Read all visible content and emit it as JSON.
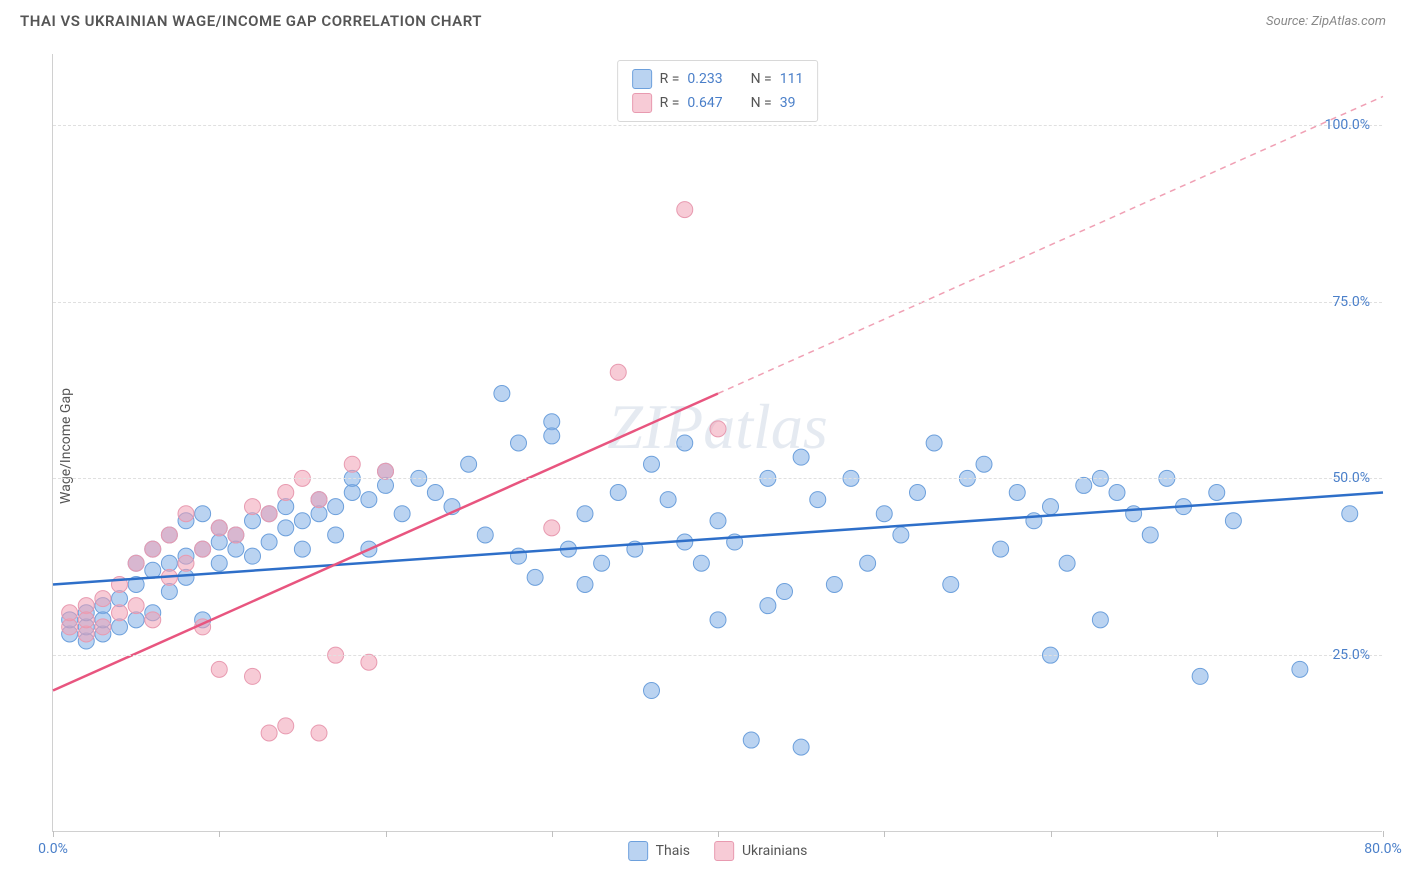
{
  "header": {
    "title": "THAI VS UKRAINIAN WAGE/INCOME GAP CORRELATION CHART",
    "source": "Source: ZipAtlas.com"
  },
  "watermark": "ZIPatlas",
  "chart": {
    "type": "scatter",
    "ylabel": "Wage/Income Gap",
    "xlim": [
      0,
      80
    ],
    "ylim": [
      0,
      110
    ],
    "xtick_positions": [
      0,
      10,
      20,
      30,
      40,
      50,
      60,
      70,
      80
    ],
    "xtick_labels": {
      "0": "0.0%",
      "80": "80.0%"
    },
    "ytick_positions": [
      25,
      50,
      75,
      100
    ],
    "ytick_labels": {
      "25": "25.0%",
      "50": "50.0%",
      "75": "75.0%",
      "100": "100.0%"
    },
    "grid_color": "#e0e0e0",
    "background_color": "#ffffff",
    "axis_color": "#d0d0d0",
    "series": [
      {
        "name": "Thais",
        "color_fill": "rgba(129,175,229,0.55)",
        "color_stroke": "#6da0dc",
        "marker_radius": 8,
        "points": [
          [
            1,
            28
          ],
          [
            1,
            30
          ],
          [
            2,
            27
          ],
          [
            2,
            29
          ],
          [
            2,
            31
          ],
          [
            3,
            28
          ],
          [
            3,
            32
          ],
          [
            3,
            30
          ],
          [
            4,
            33
          ],
          [
            4,
            29
          ],
          [
            5,
            35
          ],
          [
            5,
            38
          ],
          [
            5,
            30
          ],
          [
            6,
            37
          ],
          [
            6,
            40
          ],
          [
            6,
            31
          ],
          [
            7,
            38
          ],
          [
            7,
            42
          ],
          [
            7,
            34
          ],
          [
            8,
            39
          ],
          [
            8,
            44
          ],
          [
            8,
            36
          ],
          [
            9,
            40
          ],
          [
            9,
            45
          ],
          [
            9,
            30
          ],
          [
            10,
            41
          ],
          [
            10,
            43
          ],
          [
            10,
            38
          ],
          [
            11,
            42
          ],
          [
            11,
            40
          ],
          [
            12,
            44
          ],
          [
            12,
            39
          ],
          [
            13,
            45
          ],
          [
            13,
            41
          ],
          [
            14,
            46
          ],
          [
            14,
            43
          ],
          [
            15,
            40
          ],
          [
            15,
            44
          ],
          [
            16,
            45
          ],
          [
            16,
            47
          ],
          [
            17,
            46
          ],
          [
            17,
            42
          ],
          [
            18,
            48
          ],
          [
            18,
            50
          ],
          [
            19,
            47
          ],
          [
            19,
            40
          ],
          [
            20,
            49
          ],
          [
            20,
            51
          ],
          [
            21,
            45
          ],
          [
            22,
            50
          ],
          [
            23,
            48
          ],
          [
            24,
            46
          ],
          [
            25,
            52
          ],
          [
            26,
            42
          ],
          [
            27,
            62
          ],
          [
            28,
            55
          ],
          [
            28,
            39
          ],
          [
            29,
            36
          ],
          [
            30,
            58
          ],
          [
            30,
            56
          ],
          [
            31,
            40
          ],
          [
            32,
            45
          ],
          [
            32,
            35
          ],
          [
            33,
            38
          ],
          [
            34,
            48
          ],
          [
            35,
            40
          ],
          [
            36,
            52
          ],
          [
            36,
            20
          ],
          [
            37,
            47
          ],
          [
            38,
            41
          ],
          [
            38,
            55
          ],
          [
            39,
            38
          ],
          [
            40,
            30
          ],
          [
            40,
            44
          ],
          [
            41,
            41
          ],
          [
            42,
            13
          ],
          [
            43,
            50
          ],
          [
            43,
            32
          ],
          [
            44,
            34
          ],
          [
            45,
            53
          ],
          [
            45,
            12
          ],
          [
            46,
            47
          ],
          [
            47,
            35
          ],
          [
            48,
            50
          ],
          [
            49,
            38
          ],
          [
            50,
            45
          ],
          [
            51,
            42
          ],
          [
            52,
            48
          ],
          [
            53,
            55
          ],
          [
            54,
            35
          ],
          [
            55,
            50
          ],
          [
            56,
            52
          ],
          [
            57,
            40
          ],
          [
            58,
            48
          ],
          [
            59,
            44
          ],
          [
            60,
            46
          ],
          [
            60,
            25
          ],
          [
            61,
            38
          ],
          [
            62,
            49
          ],
          [
            63,
            50
          ],
          [
            63,
            30
          ],
          [
            64,
            48
          ],
          [
            65,
            45
          ],
          [
            66,
            42
          ],
          [
            67,
            50
          ],
          [
            68,
            46
          ],
          [
            69,
            22
          ],
          [
            70,
            48
          ],
          [
            71,
            44
          ],
          [
            75,
            23
          ],
          [
            78,
            45
          ]
        ],
        "trendline": {
          "x1": 0,
          "y1": 35,
          "x2": 80,
          "y2": 48,
          "color": "#2e6fc9",
          "width": 2.5,
          "dash": ""
        }
      },
      {
        "name": "Ukrainians",
        "color_fill": "rgba(240,160,180,0.55)",
        "color_stroke": "#e89ab0",
        "marker_radius": 8,
        "points": [
          [
            1,
            29
          ],
          [
            1,
            31
          ],
          [
            2,
            28
          ],
          [
            2,
            32
          ],
          [
            2,
            30
          ],
          [
            3,
            29
          ],
          [
            3,
            33
          ],
          [
            4,
            31
          ],
          [
            4,
            35
          ],
          [
            5,
            32
          ],
          [
            5,
            38
          ],
          [
            6,
            30
          ],
          [
            6,
            40
          ],
          [
            7,
            36
          ],
          [
            7,
            42
          ],
          [
            8,
            38
          ],
          [
            8,
            45
          ],
          [
            9,
            40
          ],
          [
            9,
            29
          ],
          [
            10,
            43
          ],
          [
            10,
            23
          ],
          [
            11,
            42
          ],
          [
            12,
            46
          ],
          [
            12,
            22
          ],
          [
            13,
            45
          ],
          [
            13,
            14
          ],
          [
            14,
            48
          ],
          [
            14,
            15
          ],
          [
            15,
            50
          ],
          [
            16,
            47
          ],
          [
            16,
            14
          ],
          [
            17,
            25
          ],
          [
            18,
            52
          ],
          [
            19,
            24
          ],
          [
            20,
            51
          ],
          [
            30,
            43
          ],
          [
            34,
            65
          ],
          [
            38,
            88
          ],
          [
            40,
            57
          ]
        ],
        "trendline": {
          "x1": 0,
          "y1": 20,
          "x2": 40,
          "y2": 62,
          "color": "#e8557f",
          "width": 2.5,
          "dash": ""
        },
        "trendline_ext": {
          "x1": 40,
          "y1": 62,
          "x2": 80,
          "y2": 104,
          "color": "#f0a0b4",
          "width": 1.5,
          "dash": "6,5"
        }
      }
    ],
    "legend_top": [
      {
        "swatch_fill": "rgba(129,175,229,0.55)",
        "swatch_stroke": "#6da0dc",
        "r_label": "R =",
        "r_val": "0.233",
        "n_label": "N =",
        "n_val": "111"
      },
      {
        "swatch_fill": "rgba(240,160,180,0.55)",
        "swatch_stroke": "#e89ab0",
        "r_label": "R =",
        "r_val": "0.647",
        "n_label": "N =",
        "n_val": "39"
      }
    ],
    "legend_bottom": [
      {
        "swatch_fill": "rgba(129,175,229,0.55)",
        "swatch_stroke": "#6da0dc",
        "label": "Thais"
      },
      {
        "swatch_fill": "rgba(240,160,180,0.55)",
        "swatch_stroke": "#e89ab0",
        "label": "Ukrainians"
      }
    ]
  }
}
